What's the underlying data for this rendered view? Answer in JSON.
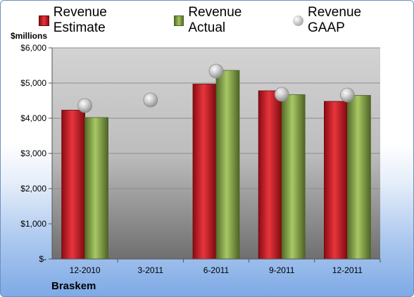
{
  "chart_data": {
    "type": "bar",
    "title": "",
    "unit_label": "$millions",
    "company": "Braskem",
    "categories": [
      "12-2010",
      "3-2011",
      "6-2011",
      "9-2011",
      "12-2011"
    ],
    "series": [
      {
        "name": "Revenue Estimate",
        "kind": "bar",
        "color": "#c8161e",
        "values": [
          4230,
          null,
          4970,
          4780,
          4480
        ]
      },
      {
        "name": "Revenue Actual",
        "kind": "bar",
        "color": "#84a33e",
        "values": [
          4020,
          null,
          5360,
          4670,
          4650
        ]
      },
      {
        "name": "Revenue GAAP",
        "kind": "marker",
        "color": "#b8b8b8",
        "values": [
          4360,
          4520,
          5340,
          4680,
          4660
        ]
      }
    ],
    "ylim": [
      0,
      6000
    ],
    "yticks": [
      0,
      1000,
      2000,
      3000,
      4000,
      5000,
      6000
    ],
    "ytick_labels": [
      "$-",
      "$1,000",
      "$2,000",
      "$3,000",
      "$4,000",
      "$5,000",
      "$6,000"
    ],
    "grid": true,
    "legend_position": "top"
  }
}
